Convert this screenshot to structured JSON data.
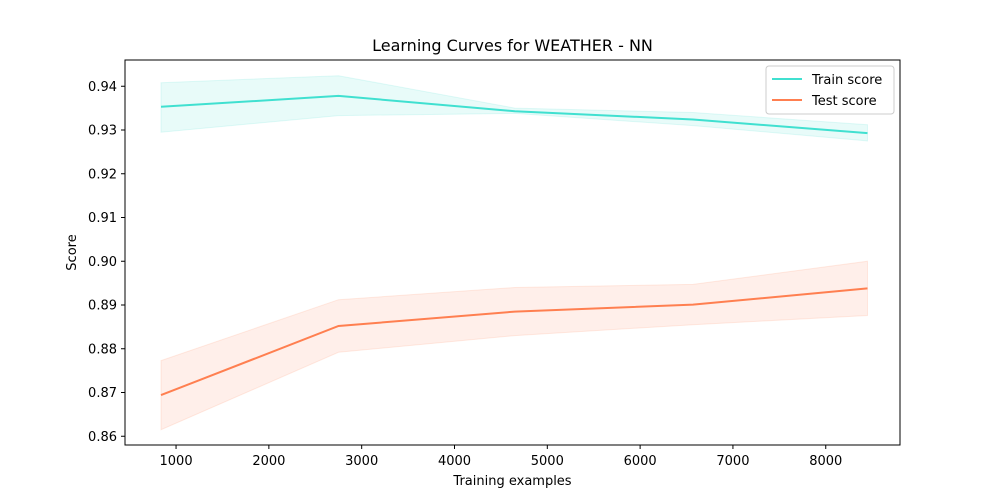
{
  "chart_data": {
    "type": "line",
    "title": "Learning Curves for WEATHER - NN",
    "xlabel": "Training examples",
    "ylabel": "Score",
    "xlim": [
      450,
      8800
    ],
    "ylim": [
      0.858,
      0.946
    ],
    "xticks": [
      1000,
      2000,
      3000,
      4000,
      5000,
      6000,
      7000,
      8000
    ],
    "yticks": [
      0.86,
      0.87,
      0.88,
      0.89,
      0.9,
      0.91,
      0.92,
      0.93,
      0.94
    ],
    "ytick_labels": [
      "0.86",
      "0.87",
      "0.88",
      "0.89",
      "0.90",
      "0.91",
      "0.92",
      "0.93",
      "0.94"
    ],
    "grid": false,
    "legend_position": "top-right",
    "x": [
      838,
      2750,
      4650,
      6570,
      8450
    ],
    "series": [
      {
        "name": "Train score",
        "color": "#40E0D0",
        "values": [
          0.9353,
          0.9378,
          0.9343,
          0.9324,
          0.9293
        ],
        "lower": [
          0.9295,
          0.9333,
          0.9338,
          0.931,
          0.9275
        ],
        "upper": [
          0.9408,
          0.9424,
          0.935,
          0.934,
          0.9312
        ]
      },
      {
        "name": "Test score",
        "color": "#FF7F50",
        "values": [
          0.8694,
          0.8852,
          0.8885,
          0.8901,
          0.8938
        ],
        "lower": [
          0.8615,
          0.8792,
          0.883,
          0.8855,
          0.8876
        ],
        "upper": [
          0.8773,
          0.8912,
          0.894,
          0.8947,
          0.9
        ]
      }
    ]
  }
}
